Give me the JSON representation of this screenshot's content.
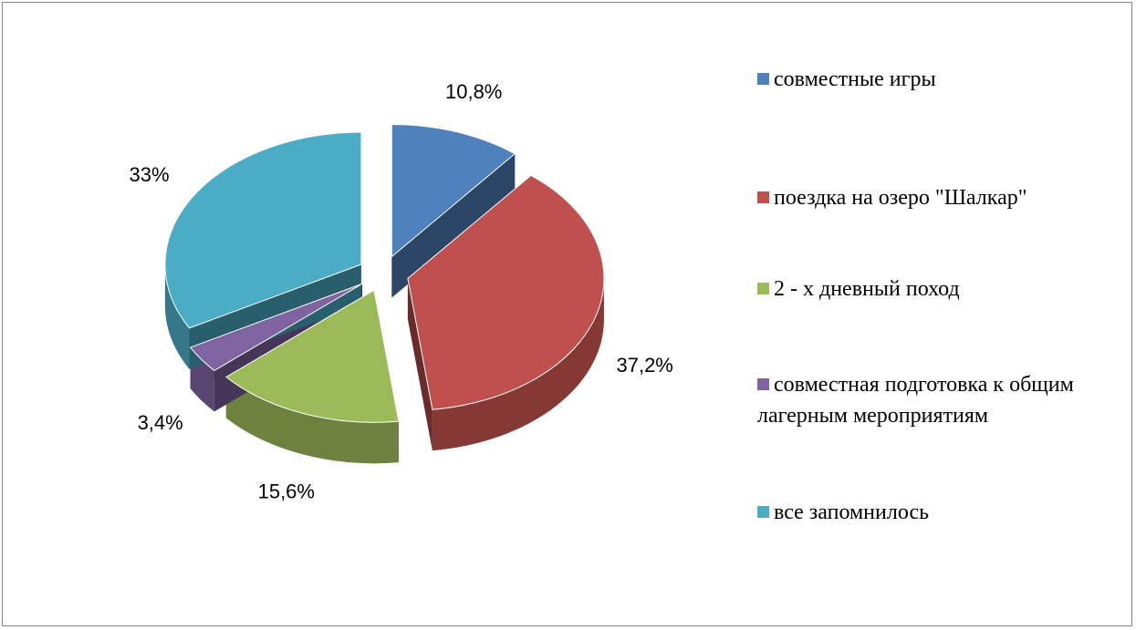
{
  "chart_data": {
    "type": "pie",
    "categories": [
      "совместные игры",
      "поездка на озеро \"Шалкар\"",
      "2 - х дневный поход",
      "совместная подготовка к общим лагерным мероприятиям",
      "все запомнилось"
    ],
    "values": [
      10.8,
      37.2,
      15.6,
      3.4,
      33
    ],
    "value_labels": [
      "10,8%",
      "37,2%",
      "15,6%",
      "3,4%",
      "33%"
    ],
    "colors": [
      "#4f81bd",
      "#c0504d",
      "#9bbb59",
      "#8064a2",
      "#4bacc6"
    ],
    "legend": "right"
  }
}
